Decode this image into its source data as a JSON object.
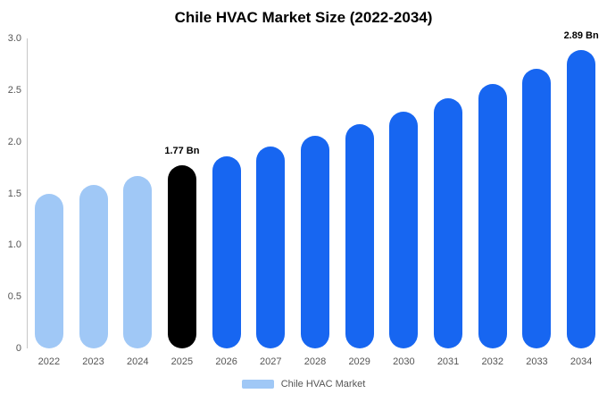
{
  "chart_data": {
    "type": "bar",
    "title": "Chile HVAC Market Size (2022-2034)",
    "xlabel": "",
    "ylabel": "",
    "ylim": [
      0,
      3.0
    ],
    "grid": false,
    "legend_position": "bottom",
    "legend": "Chile HVAC Market",
    "unit": "Bn",
    "colors": {
      "past": "#a0c8f6",
      "highlight": "#000000",
      "forecast": "#1766f1",
      "axis": "#c7c7c7",
      "tick_text": "#555555"
    },
    "yticks": [
      {
        "v": 0,
        "label": "0"
      },
      {
        "v": 0.5,
        "label": "0.5"
      },
      {
        "v": 1.0,
        "label": "1.0"
      },
      {
        "v": 1.5,
        "label": "1.5"
      },
      {
        "v": 2.0,
        "label": "2.0"
      },
      {
        "v": 2.5,
        "label": "2.5"
      },
      {
        "v": 3.0,
        "label": "3.0"
      }
    ],
    "points": [
      {
        "year": "2022",
        "value": 1.5,
        "color": "past"
      },
      {
        "year": "2023",
        "value": 1.58,
        "color": "past"
      },
      {
        "year": "2024",
        "value": 1.67,
        "color": "past"
      },
      {
        "year": "2025",
        "value": 1.77,
        "color": "highlight",
        "label": "1.77 Bn"
      },
      {
        "year": "2026",
        "value": 1.86,
        "color": "forecast"
      },
      {
        "year": "2027",
        "value": 1.95,
        "color": "forecast"
      },
      {
        "year": "2028",
        "value": 2.06,
        "color": "forecast"
      },
      {
        "year": "2029",
        "value": 2.17,
        "color": "forecast"
      },
      {
        "year": "2030",
        "value": 2.29,
        "color": "forecast"
      },
      {
        "year": "2031",
        "value": 2.42,
        "color": "forecast"
      },
      {
        "year": "2032",
        "value": 2.56,
        "color": "forecast"
      },
      {
        "year": "2033",
        "value": 2.71,
        "color": "forecast"
      },
      {
        "year": "2034",
        "value": 2.89,
        "color": "forecast",
        "label": "2.89 Bn"
      }
    ]
  }
}
